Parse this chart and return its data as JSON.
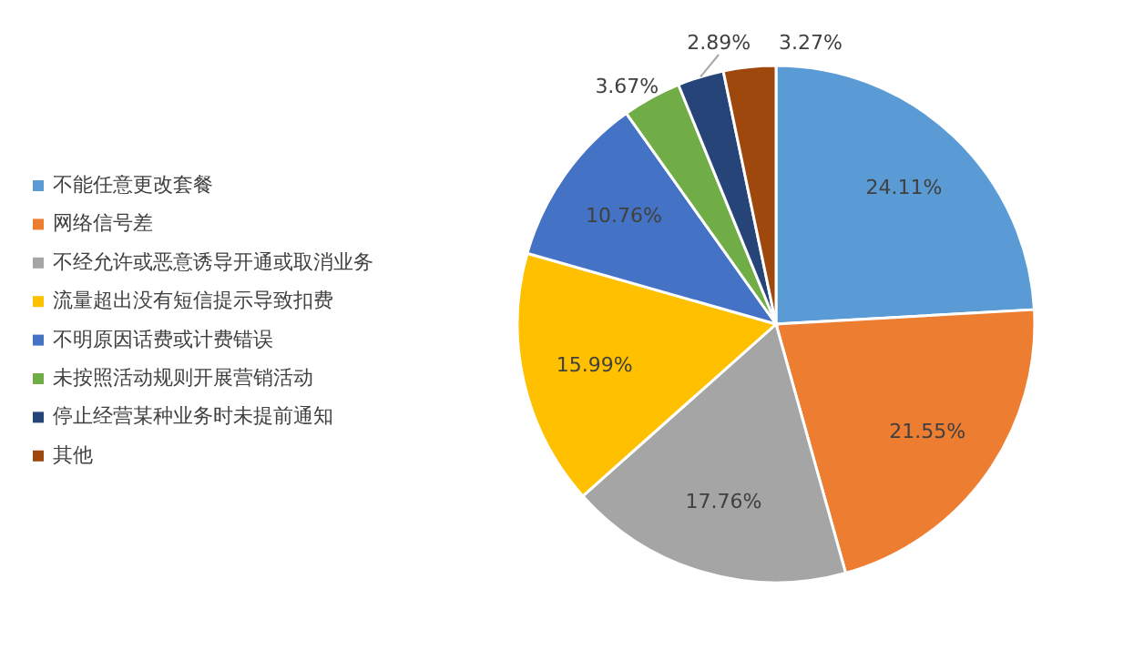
{
  "chart_data": {
    "type": "pie",
    "categories": [
      "不能任意更改套餐",
      "网络信号差",
      "不经允许或恶意诱导开通或取消业务",
      "流量超出没有短信提示导致扣费",
      "不明原因话费或计费错误",
      "未按照活动规则开展营销活动",
      "停止经营某种业务时未提前通知",
      "其他"
    ],
    "values": [
      24.11,
      21.55,
      17.76,
      15.99,
      10.76,
      3.67,
      2.89,
      3.27
    ],
    "value_labels": [
      "24.11%",
      "21.55%",
      "17.76%",
      "15.99%",
      "10.76%",
      "3.67%",
      "2.89%",
      "3.27%"
    ],
    "colors": [
      "#5b9bd5",
      "#ed7d31",
      "#a5a5a5",
      "#ffc000",
      "#4472c4",
      "#70ad47",
      "#264478",
      "#9e480e"
    ],
    "legend": "left"
  }
}
